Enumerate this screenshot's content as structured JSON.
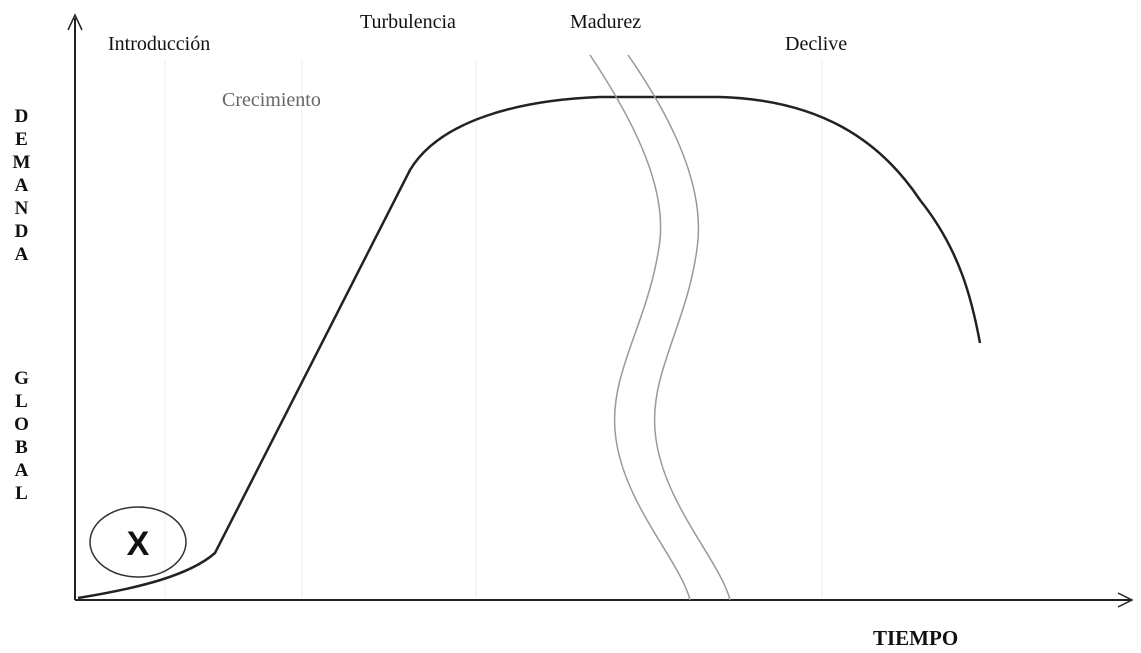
{
  "diagram": {
    "stages": [
      "Introducción",
      "Crecimiento",
      "Turbulencia",
      "Madurez",
      "Declive"
    ],
    "y_axis_label": [
      "DEMANDA",
      "GLOBAL"
    ],
    "x_axis_label": "TIEMPO",
    "marker": "X"
  }
}
